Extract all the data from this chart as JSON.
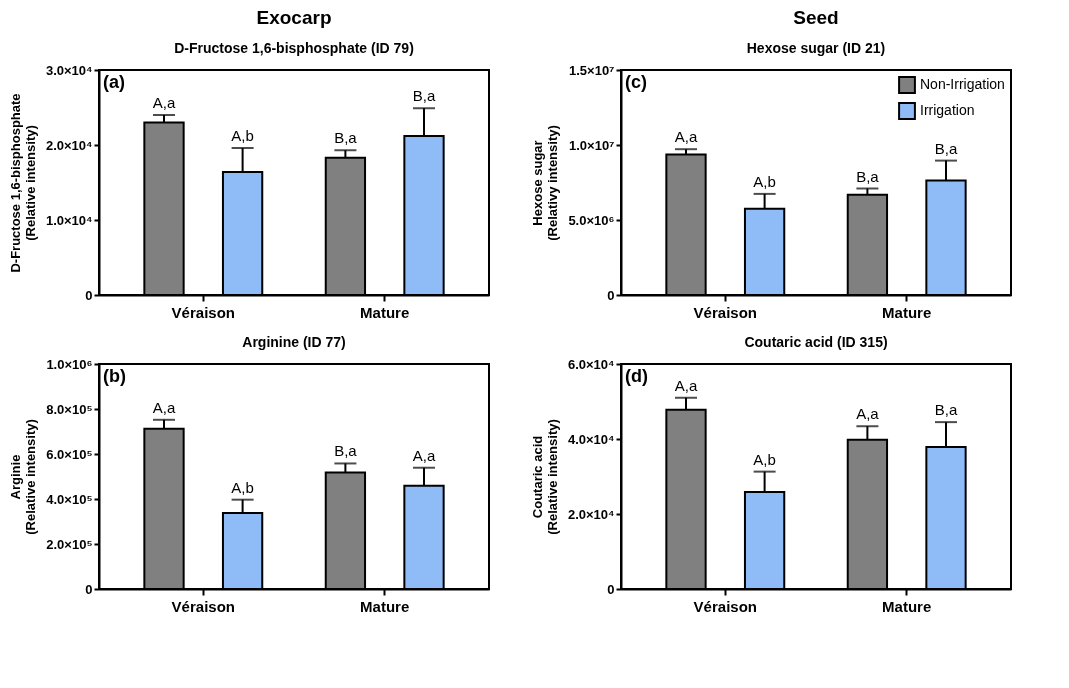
{
  "chart_data": [
    {
      "type": "bar",
      "title": "Exocarp",
      "subtitle": "D-Fructose 1,6-bisphosphate (ID 79)",
      "ylabel": "D-Fructose 1,6-bisphosphate\n(Relative intensity)",
      "annotations": [
        "(a)"
      ],
      "categories": [
        "Véraison",
        "Mature"
      ],
      "series": [
        {
          "color": "#808080",
          "values": [
            23000,
            18300
          ],
          "errors": [
            1000,
            1000
          ],
          "value_labels": [
            "A,a",
            "B,a"
          ]
        },
        {
          "color": "#8fbcf7",
          "values": [
            16400,
            21200
          ],
          "errors": [
            3200,
            3700
          ],
          "value_labels": [
            "A,b",
            "B,a"
          ]
        }
      ],
      "ylim": [
        0,
        30000
      ],
      "yticks": [
        0,
        {
          "value": 10000,
          "label": "1.0×10⁴"
        },
        {
          "value": 20000,
          "label": "2.0×10⁴"
        },
        {
          "value": 30000,
          "label": "3.0×10⁴"
        }
      ],
      "grid": false,
      "legend": false
    },
    {
      "type": "bar",
      "title": "Seed",
      "subtitle": "Hexose sugar (ID 21)",
      "ylabel": "Hexose sugar\n(Relativy intensity)",
      "annotations": [
        "(c)"
      ],
      "categories": [
        "Véraison",
        "Mature"
      ],
      "series": [
        {
          "name": "Non-Irrigation",
          "color": "#808080",
          "values": [
            9370000,
            6680000
          ],
          "errors": [
            350000,
            420000
          ],
          "value_labels": [
            "A,a",
            "B,a"
          ]
        },
        {
          "name": "Irrigation",
          "color": "#8fbcf7",
          "values": [
            5750000,
            7630000
          ],
          "errors": [
            990000,
            1330000
          ],
          "value_labels": [
            "A,b",
            "B,a"
          ]
        }
      ],
      "ylim": [
        0,
        15000000
      ],
      "yticks": [
        0,
        {
          "value": 5000000,
          "label": "5.0×10⁶"
        },
        {
          "value": 10000000,
          "label": "1.0×10⁷"
        },
        {
          "value": 15000000,
          "label": "1.5×10⁷"
        }
      ],
      "grid": false,
      "legend": "top right"
    },
    {
      "type": "bar",
      "subtitle": "Arginine (ID 77)",
      "ylabel": "Arginie\n(Relative intensity)",
      "annotations": [
        "(b)"
      ],
      "categories": [
        "Véraison",
        "Mature"
      ],
      "series": [
        {
          "color": "#808080",
          "values": [
            712000,
            518000
          ],
          "errors": [
            40000,
            40000
          ],
          "value_labels": [
            "A,a",
            "B,a"
          ]
        },
        {
          "color": "#8fbcf7",
          "values": [
            338000,
            459000
          ],
          "errors": [
            59000,
            80000
          ],
          "value_labels": [
            "A,b",
            "A,a"
          ]
        }
      ],
      "ylim": [
        0,
        1000000
      ],
      "yticks": [
        0,
        {
          "value": 200000,
          "label": "2.0×10⁵"
        },
        {
          "value": 400000,
          "label": "4.0×10⁵"
        },
        {
          "value": 600000,
          "label": "6.0×10⁵"
        },
        {
          "value": 800000,
          "label": "8.0×10⁵"
        },
        {
          "value": 1000000,
          "label": "1.0×10⁶"
        }
      ],
      "grid": false,
      "legend": false
    },
    {
      "type": "bar",
      "subtitle": "Coutaric acid (ID 315)",
      "ylabel": "Coutaric acid\n(Relative intensity)",
      "annotations": [
        "(d)"
      ],
      "categories": [
        "Véraison",
        "Mature"
      ],
      "series": [
        {
          "color": "#808080",
          "values": [
            47800,
            39800
          ],
          "errors": [
            3200,
            3600
          ],
          "value_labels": [
            "A,a",
            "A,a"
          ]
        },
        {
          "color": "#8fbcf7",
          "values": [
            25900,
            37900
          ],
          "errors": [
            5400,
            6600
          ],
          "value_labels": [
            "A,b",
            "B,a"
          ]
        }
      ],
      "ylim": [
        0,
        60000
      ],
      "yticks": [
        0,
        {
          "value": 20000,
          "label": "2.0×10⁴"
        },
        {
          "value": 40000,
          "label": "4.0×10⁴"
        },
        {
          "value": 60000,
          "label": "6.0×10⁴"
        }
      ],
      "grid": false,
      "legend": false
    }
  ]
}
